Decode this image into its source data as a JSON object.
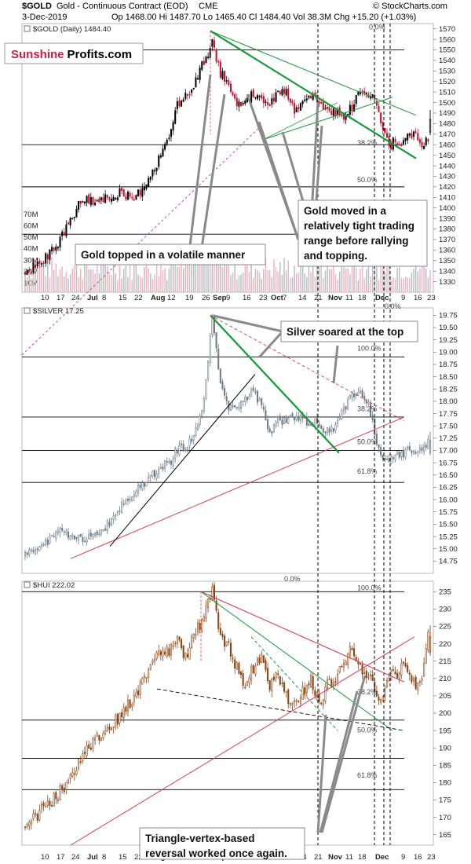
{
  "header": {
    "symbol": "$GOLD",
    "title": "Gold - Continuous Contract (EOD)",
    "exchange": "CME",
    "date": "3-Dec-2019",
    "quote": "Op 1468.00  Hi 1487.70  Lo 1465.40  Cl 1484.40  Vol 38.3M  Chg +15.20 (+1.03%)",
    "credit": "© StockCharts.com"
  },
  "brand": {
    "part1": "Sunshine",
    "part2": "Profits.com",
    "color1": "#c8213f",
    "color2": "#000000"
  },
  "colors": {
    "up": "#000000",
    "down": "#c8102e",
    "silver": "#6e7b86",
    "hui": "#8b4513",
    "green": "#199a3a",
    "red": "#d63d55",
    "vol_up": "#b9bcc0",
    "vol_down": "#f2b3bd"
  },
  "annotations": {
    "gold_top": "Gold topped in a volatile manner",
    "gold_range": "Gold moved in a relatively tight trading range before rallying and topping.",
    "silver_top": "Silver soared at the top",
    "vertex": "Triangle-vertex-based reversal worked once again."
  },
  "chart_data": [
    {
      "type": "candlestick",
      "name": "gold",
      "legend": "$GOLD (Daily) 1484.40",
      "ylim": [
        1320,
        1575
      ],
      "yticks": [
        1330,
        1340,
        1350,
        1360,
        1370,
        1380,
        1390,
        1400,
        1410,
        1420,
        1430,
        1440,
        1450,
        1460,
        1470,
        1480,
        1490,
        1500,
        1510,
        1520,
        1530,
        1540,
        1550,
        1560,
        1570
      ],
      "xticks": [
        "10",
        "17",
        "24",
        "Jul",
        "8",
        "15",
        "22",
        "Aug",
        "12",
        "19",
        "26",
        "Sep",
        "9",
        "16",
        "23",
        "Oct",
        "7",
        "14",
        "21",
        "Nov",
        "11",
        "18",
        "Dec",
        "9",
        "16",
        "23"
      ],
      "close_path": [
        [
          0,
          1340
        ],
        [
          8,
          1348
        ],
        [
          15,
          1362
        ],
        [
          22,
          1388
        ],
        [
          28,
          1410
        ],
        [
          34,
          1405
        ],
        [
          40,
          1412
        ],
        [
          46,
          1415
        ],
        [
          52,
          1410
        ],
        [
          58,
          1420
        ],
        [
          64,
          1440
        ],
        [
          70,
          1470
        ],
        [
          74,
          1500
        ],
        [
          78,
          1505
        ],
        [
          82,
          1515
        ],
        [
          87,
          1540
        ],
        [
          91,
          1556
        ],
        [
          95,
          1528
        ],
        [
          99,
          1520
        ],
        [
          103,
          1495
        ],
        [
          107,
          1502
        ],
        [
          111,
          1510
        ],
        [
          115,
          1505
        ],
        [
          119,
          1495
        ],
        [
          123,
          1513
        ],
        [
          127,
          1510
        ],
        [
          131,
          1490
        ],
        [
          135,
          1500
        ],
        [
          139,
          1505
        ],
        [
          143,
          1500
        ],
        [
          147,
          1492
        ],
        [
          151,
          1492
        ],
        [
          155,
          1487
        ],
        [
          159,
          1495
        ],
        [
          163,
          1512
        ],
        [
          167,
          1505
        ],
        [
          169,
          1509
        ],
        [
          172,
          1488
        ],
        [
          175,
          1468
        ],
        [
          178,
          1460
        ],
        [
          181,
          1465
        ],
        [
          184,
          1463
        ],
        [
          187,
          1472
        ],
        [
          190,
          1468
        ],
        [
          193,
          1462
        ],
        [
          196,
          1465
        ],
        [
          197,
          1484
        ]
      ],
      "volume": {
        "labels": [
          "70M",
          "60M",
          "50M",
          "40M",
          "30M",
          "20M",
          "10M"
        ],
        "max": 70
      },
      "horizontal_levels": [
        1550,
        1460,
        1420,
        1375
      ],
      "fib_labels": [
        {
          "label": "38.2%",
          "value": 1458
        },
        {
          "label": "50.0%",
          "value": 1423
        },
        {
          "label": "0.0%",
          "value": 1568
        }
      ]
    },
    {
      "type": "candlestick",
      "name": "silver",
      "legend": "$SILVER 17.25",
      "ylim": [
        14.5,
        19.9
      ],
      "yticks": [
        14.75,
        15.0,
        15.25,
        15.5,
        15.75,
        16.0,
        16.25,
        16.5,
        16.75,
        17.0,
        17.25,
        17.5,
        17.75,
        18.0,
        18.25,
        18.5,
        18.75,
        19.0,
        19.25,
        19.5,
        19.75
      ],
      "close_path": [
        [
          0,
          14.85
        ],
        [
          8,
          15.05
        ],
        [
          15,
          15.35
        ],
        [
          22,
          15.3
        ],
        [
          28,
          15.2
        ],
        [
          34,
          15.3
        ],
        [
          40,
          15.5
        ],
        [
          46,
          15.8
        ],
        [
          52,
          16.1
        ],
        [
          58,
          16.35
        ],
        [
          64,
          16.6
        ],
        [
          70,
          16.75
        ],
        [
          74,
          17.0
        ],
        [
          78,
          17.05
        ],
        [
          82,
          17.3
        ],
        [
          87,
          18.0
        ],
        [
          91,
          19.7
        ],
        [
          95,
          18.3
        ],
        [
          99,
          17.9
        ],
        [
          103,
          17.9
        ],
        [
          107,
          18.1
        ],
        [
          111,
          18.2
        ],
        [
          115,
          17.9
        ],
        [
          119,
          17.3
        ],
        [
          123,
          17.6
        ],
        [
          127,
          17.6
        ],
        [
          131,
          17.7
        ],
        [
          135,
          17.6
        ],
        [
          139,
          17.6
        ],
        [
          143,
          17.5
        ],
        [
          147,
          17.4
        ],
        [
          151,
          17.5
        ],
        [
          155,
          17.8
        ],
        [
          159,
          18.1
        ],
        [
          163,
          18.2
        ],
        [
          167,
          17.9
        ],
        [
          169,
          17.6
        ],
        [
          172,
          17.0
        ],
        [
          175,
          16.8
        ],
        [
          178,
          16.85
        ],
        [
          181,
          16.95
        ],
        [
          184,
          16.9
        ],
        [
          187,
          17.05
        ],
        [
          190,
          17.0
        ],
        [
          193,
          16.95
        ],
        [
          196,
          17.2
        ]
      ],
      "horizontal_levels": [
        18.9,
        17.68,
        17.0,
        16.35
      ],
      "fib_labels": [
        {
          "label": "0.0%",
          "value": 19.85
        },
        {
          "label": "100.0%",
          "value": 19.0
        },
        {
          "label": "38.2%",
          "value": 17.77
        },
        {
          "label": "50.0%",
          "value": 17.1
        },
        {
          "label": "61.8%",
          "value": 16.5
        }
      ]
    },
    {
      "type": "candlestick",
      "name": "hui",
      "legend": "$HUI 222.02",
      "ylim": [
        162,
        238
      ],
      "yticks": [
        165,
        170,
        175,
        180,
        185,
        190,
        195,
        200,
        205,
        210,
        215,
        220,
        225,
        230,
        235
      ],
      "close_path": [
        [
          0,
          167
        ],
        [
          8,
          172
        ],
        [
          15,
          176
        ],
        [
          22,
          181
        ],
        [
          28,
          189
        ],
        [
          34,
          192
        ],
        [
          40,
          196
        ],
        [
          46,
          199
        ],
        [
          52,
          204
        ],
        [
          58,
          210
        ],
        [
          64,
          216
        ],
        [
          70,
          218
        ],
        [
          74,
          221
        ],
        [
          78,
          216
        ],
        [
          82,
          222
        ],
        [
          87,
          228
        ],
        [
          91,
          236
        ],
        [
          95,
          222
        ],
        [
          99,
          219
        ],
        [
          103,
          213
        ],
        [
          107,
          208
        ],
        [
          111,
          213
        ],
        [
          115,
          216
        ],
        [
          119,
          208
        ],
        [
          123,
          211
        ],
        [
          127,
          205
        ],
        [
          131,
          203
        ],
        [
          135,
          206
        ],
        [
          139,
          210
        ],
        [
          143,
          203
        ],
        [
          147,
          208
        ],
        [
          151,
          210
        ],
        [
          155,
          214
        ],
        [
          159,
          219
        ],
        [
          163,
          213
        ],
        [
          167,
          211
        ],
        [
          169,
          208
        ],
        [
          172,
          203
        ],
        [
          175,
          208
        ],
        [
          178,
          213
        ],
        [
          181,
          211
        ],
        [
          184,
          216
        ],
        [
          187,
          212
        ],
        [
          190,
          207
        ],
        [
          193,
          210
        ],
        [
          196,
          222
        ]
      ],
      "horizontal_levels": [
        235,
        198,
        187,
        178
      ],
      "fib_labels": [
        {
          "label": "0.0%",
          "value": 237.5
        },
        {
          "label": "100.0%",
          "value": 235
        },
        {
          "label": "38.2%",
          "value": 205
        },
        {
          "label": "50.0%",
          "value": 194
        },
        {
          "label": "61.8%",
          "value": 181
        }
      ]
    }
  ]
}
